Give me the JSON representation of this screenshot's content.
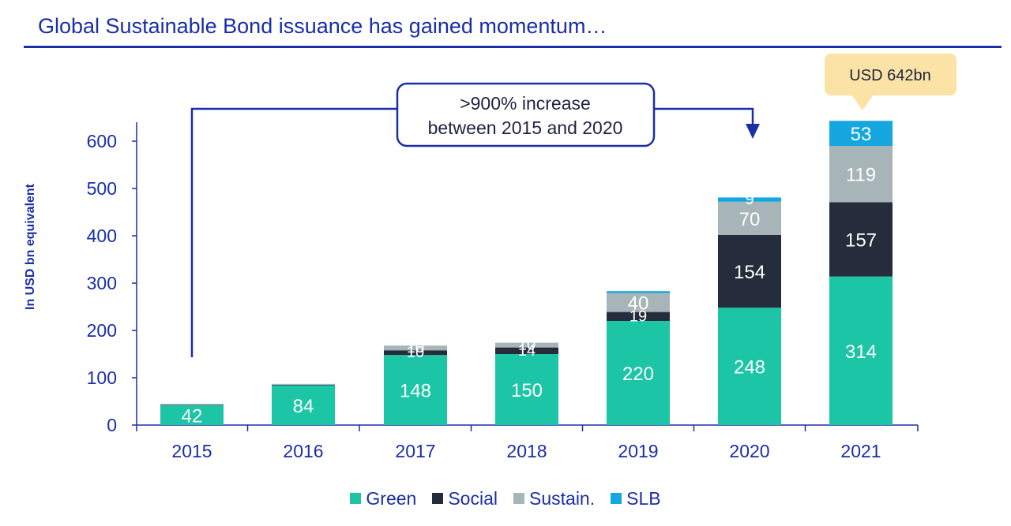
{
  "title": "Global Sustainable Bond issuance has gained momentum…",
  "colors": {
    "Green": "#1cc5a5",
    "Social": "#252d3d",
    "Sustain.": "#a8b5b8",
    "SLB": "#16a7e0",
    "accent": "#1a2ea8"
  },
  "callout": {
    "line1": ">900% increase",
    "line2": "between 2015 and 2020"
  },
  "total_label": "USD 642bn",
  "chart_data": {
    "type": "bar",
    "stacked": true,
    "categories": [
      "2015",
      "2016",
      "2017",
      "2018",
      "2019",
      "2020",
      "2021"
    ],
    "ylabel": "In USD bn equivalent",
    "ylim": [
      0,
      640
    ],
    "yticks": [
      0,
      100,
      200,
      300,
      400,
      500,
      600
    ],
    "legend_position": "bottom",
    "grid": false,
    "series": [
      {
        "name": "Green",
        "values": [
          42,
          84,
          148,
          150,
          220,
          248,
          314
        ]
      },
      {
        "name": "Social",
        "values": [
          1,
          1,
          10,
          14,
          19,
          154,
          157
        ]
      },
      {
        "name": "Sustain.",
        "values": [
          2,
          2,
          10,
          10,
          40,
          70,
          119
        ]
      },
      {
        "name": "SLB",
        "values": [
          0,
          0,
          0,
          0,
          4,
          9,
          53
        ]
      }
    ],
    "total_2021": 642
  }
}
